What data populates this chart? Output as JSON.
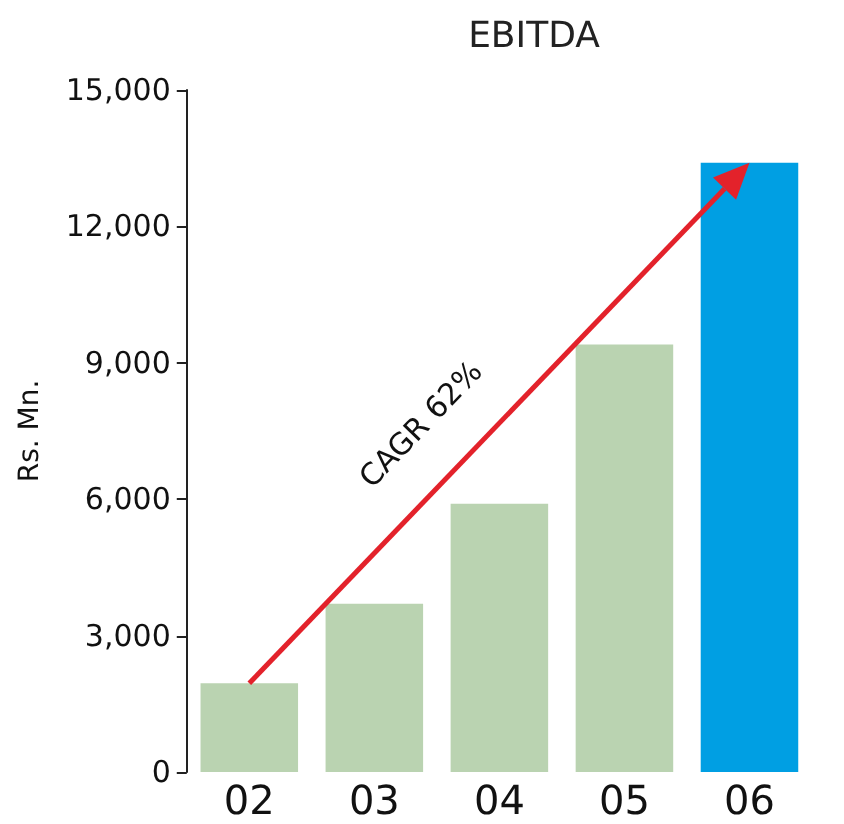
{
  "chart_data": {
    "type": "bar",
    "title": "EBITDA",
    "ylabel": "Rs. Mn.",
    "categories": [
      "02",
      "03",
      "04",
      "05",
      "06"
    ],
    "values": [
      1950,
      3700,
      5900,
      9400,
      13400
    ],
    "colors": [
      "#bad3b1",
      "#bad3b1",
      "#bad3b1",
      "#bad3b1",
      "#009fe3"
    ],
    "ylim": [
      0,
      15000
    ],
    "yticks": [
      0,
      {
        "value": 3000,
        "label": "3,000"
      },
      {
        "value": 6000,
        "label": "6,000"
      },
      {
        "value": 9000,
        "label": "9,000"
      },
      {
        "value": 12000,
        "label": "12,000"
      },
      {
        "value": 15000,
        "label": "15,000"
      }
    ],
    "annotations": [
      "CAGR 62%"
    ],
    "grid": false
  }
}
